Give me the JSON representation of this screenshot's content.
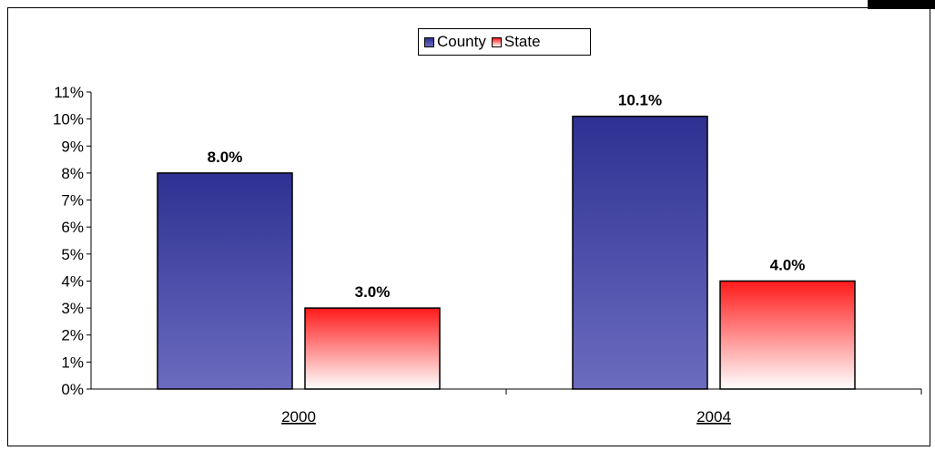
{
  "chart_data": {
    "type": "bar",
    "categories": [
      "2000",
      "2004"
    ],
    "series": [
      {
        "name": "County",
        "values": [
          8.0,
          10.1
        ],
        "labels": [
          "8.0%",
          "10.1%"
        ],
        "color_top": "#2e3192",
        "color_bottom": "#6b6bbf"
      },
      {
        "name": "State",
        "values": [
          3.0,
          4.0
        ],
        "labels": [
          "3.0%",
          "4.0%"
        ],
        "color_top": "#ff1a1a",
        "color_bottom": "#ffffff"
      }
    ],
    "y_ticks": [
      "0%",
      "1%",
      "2%",
      "3%",
      "4%",
      "5%",
      "6%",
      "7%",
      "8%",
      "9%",
      "10%",
      "11%"
    ],
    "ylim": [
      0,
      11
    ],
    "legend_position": "top-center",
    "grid": false,
    "title": "",
    "xlabel": "",
    "ylabel": ""
  }
}
